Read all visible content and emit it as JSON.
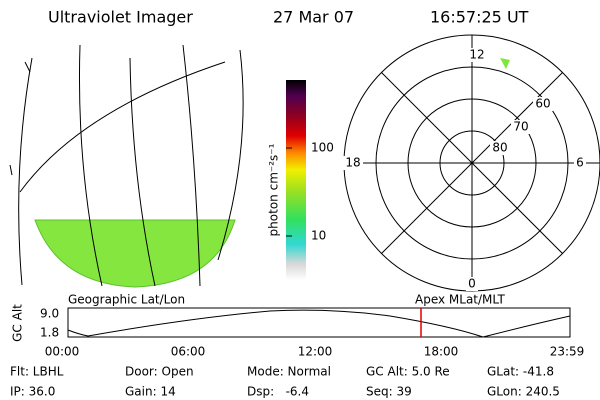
{
  "header": {
    "instrument": "Ultraviolet Imager",
    "date": "27 Mar 07",
    "time": "16:57:25 UT"
  },
  "colorbar": {
    "label": "photon cm⁻²s⁻¹",
    "ticks": [
      "100",
      "10"
    ]
  },
  "polar": {
    "mlt_labels": [
      "12",
      "18",
      "6",
      "0"
    ],
    "mlat_labels": [
      "60",
      "70",
      "80"
    ]
  },
  "timeline": {
    "axis_label": "GC Alt",
    "y_labels": [
      "9.0",
      "1.8"
    ],
    "left_title": "Geographic Lat/Lon",
    "right_title": "Apex MLat/MLT",
    "time_labels": [
      "00:00",
      "06:00",
      "12:00",
      "18:00",
      "23:59"
    ]
  },
  "info": {
    "rows": [
      [
        "Flt: LBHL",
        "Door: Open",
        "Mode: Normal",
        "GC Alt: 5.0 Re",
        "GLat: -41.8"
      ],
      [
        "IP: 36.0",
        "Gain: 14",
        "Dsp:   -6.4",
        "Seq: 39",
        "GLon: 240.5"
      ]
    ]
  }
}
